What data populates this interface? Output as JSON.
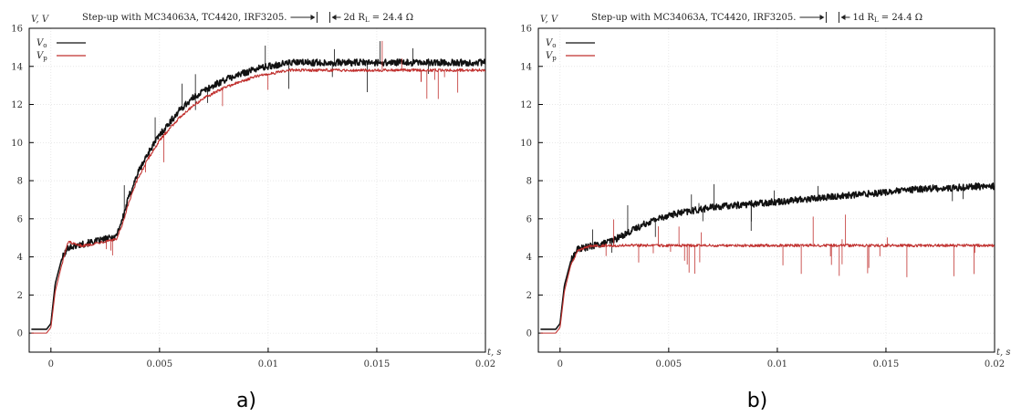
{
  "colors": {
    "vo": "#111111",
    "vp": "#c0302e"
  },
  "chart_data": [
    {
      "type": "line",
      "caption": "a)",
      "title": "Step-up with MC34063A, TC4420, IRF3205.",
      "annotation": "2d R",
      "annotation_sub": "L",
      "annotation_value": " = 24.4 Ω",
      "xlabel": "t, s",
      "ylabel": "V, V",
      "xlim": [
        -0.001,
        0.02
      ],
      "ylim": [
        -1,
        16
      ],
      "xticks": [
        0,
        0.005,
        0.01,
        0.015,
        0.02
      ],
      "xtick_labels": [
        "0",
        "0.005",
        "0.01",
        "0.015",
        "0.02"
      ],
      "yticks": [
        0,
        2,
        4,
        6,
        8,
        10,
        12,
        14,
        16
      ],
      "ytick_labels": [
        "0",
        "2",
        "4",
        "6",
        "8",
        "10",
        "12",
        "14",
        "16"
      ],
      "grid": true,
      "legend_position": "top-left",
      "series": [
        {
          "name": "V",
          "name_sub": "o",
          "color": "#111111",
          "x": [
            -0.0009,
            -0.0002,
            0.0,
            0.0002,
            0.0005,
            0.0008,
            0.0012,
            0.0016,
            0.002,
            0.0024,
            0.0028,
            0.003,
            0.0033,
            0.0036,
            0.004,
            0.0045,
            0.005,
            0.0055,
            0.006,
            0.0065,
            0.007,
            0.0075,
            0.008,
            0.0085,
            0.009,
            0.0095,
            0.01,
            0.0105,
            0.011,
            0.0115,
            0.012,
            0.013,
            0.014,
            0.015,
            0.016,
            0.017,
            0.018,
            0.019,
            0.02
          ],
          "y": [
            0.2,
            0.2,
            0.5,
            2.6,
            3.9,
            4.5,
            4.6,
            4.7,
            4.8,
            4.9,
            5.0,
            5.1,
            6.0,
            7.2,
            8.4,
            9.5,
            10.4,
            11.1,
            11.8,
            12.3,
            12.7,
            13.0,
            13.3,
            13.5,
            13.7,
            13.9,
            14.0,
            14.1,
            14.2,
            14.2,
            14.2,
            14.2,
            14.2,
            14.2,
            14.2,
            14.2,
            14.2,
            14.2,
            14.2
          ]
        },
        {
          "name": "V",
          "name_sub": "p",
          "color": "#c0302e",
          "x": [
            -0.0009,
            -0.0002,
            0.0,
            0.0002,
            0.0005,
            0.0008,
            0.0012,
            0.0016,
            0.002,
            0.0024,
            0.0028,
            0.003,
            0.0033,
            0.0036,
            0.004,
            0.0045,
            0.005,
            0.0055,
            0.006,
            0.0065,
            0.007,
            0.0075,
            0.008,
            0.0085,
            0.009,
            0.0095,
            0.01,
            0.0105,
            0.011,
            0.0115,
            0.012,
            0.013,
            0.014,
            0.015,
            0.016,
            0.017,
            0.018,
            0.019,
            0.02
          ],
          "y": [
            0.0,
            0.0,
            0.3,
            2.2,
            3.6,
            4.8,
            4.6,
            4.6,
            4.7,
            4.8,
            4.9,
            4.9,
            5.7,
            6.9,
            8.1,
            9.2,
            10.1,
            10.8,
            11.4,
            11.9,
            12.3,
            12.6,
            12.9,
            13.1,
            13.3,
            13.5,
            13.6,
            13.7,
            13.8,
            13.8,
            13.8,
            13.8,
            13.8,
            13.8,
            13.8,
            13.8,
            13.8,
            13.8,
            13.8
          ]
        }
      ]
    },
    {
      "type": "line",
      "caption": "b)",
      "title": "Step-up with MC34063A, TC4420, IRF3205.",
      "annotation": "1d R",
      "annotation_sub": "L",
      "annotation_value": " = 24.4 Ω",
      "xlabel": "t, s",
      "ylabel": "V, V",
      "xlim": [
        -0.001,
        0.02
      ],
      "ylim": [
        -1,
        16
      ],
      "xticks": [
        0,
        0.005,
        0.01,
        0.015,
        0.02
      ],
      "xtick_labels": [
        "0",
        "0.005",
        "0.01",
        "0.015",
        "0.02"
      ],
      "yticks": [
        0,
        2,
        4,
        6,
        8,
        10,
        12,
        14,
        16
      ],
      "ytick_labels": [
        "0",
        "2",
        "4",
        "6",
        "8",
        "10",
        "12",
        "14",
        "16"
      ],
      "grid": true,
      "legend_position": "top-left",
      "series": [
        {
          "name": "V",
          "name_sub": "o",
          "color": "#111111",
          "x": [
            -0.0009,
            -0.0002,
            0.0,
            0.0002,
            0.0005,
            0.0008,
            0.0012,
            0.0016,
            0.002,
            0.0025,
            0.003,
            0.0035,
            0.004,
            0.0045,
            0.005,
            0.006,
            0.007,
            0.008,
            0.009,
            0.01,
            0.011,
            0.012,
            0.013,
            0.014,
            0.015,
            0.016,
            0.017,
            0.018,
            0.019,
            0.02
          ],
          "y": [
            0.2,
            0.2,
            0.5,
            2.5,
            3.8,
            4.4,
            4.5,
            4.6,
            4.7,
            4.9,
            5.2,
            5.5,
            5.8,
            6.0,
            6.2,
            6.4,
            6.6,
            6.7,
            6.8,
            6.9,
            7.0,
            7.1,
            7.2,
            7.3,
            7.4,
            7.5,
            7.6,
            7.6,
            7.7,
            7.7
          ]
        },
        {
          "name": "V",
          "name_sub": "p",
          "color": "#c0302e",
          "x": [
            -0.0009,
            -0.0002,
            0.0,
            0.0002,
            0.0005,
            0.0008,
            0.0012,
            0.0016,
            0.002,
            0.003,
            0.004,
            0.005,
            0.006,
            0.007,
            0.008,
            0.009,
            0.01,
            0.011,
            0.012,
            0.013,
            0.014,
            0.015,
            0.016,
            0.017,
            0.018,
            0.019,
            0.02
          ],
          "y": [
            0.0,
            0.0,
            0.3,
            2.2,
            3.6,
            4.3,
            4.5,
            4.6,
            4.6,
            4.6,
            4.6,
            4.6,
            4.6,
            4.6,
            4.6,
            4.6,
            4.6,
            4.6,
            4.6,
            4.6,
            4.6,
            4.6,
            4.6,
            4.6,
            4.6,
            4.6,
            4.6
          ]
        }
      ]
    }
  ]
}
